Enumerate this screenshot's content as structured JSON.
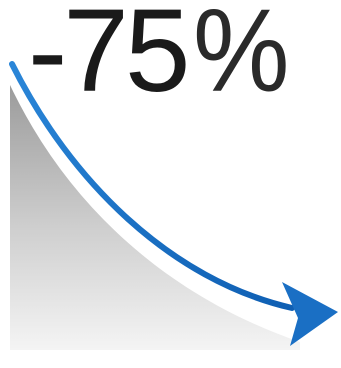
{
  "headline": {
    "value": "-75",
    "unit": "%"
  },
  "colors": {
    "text": "#1a1a1a",
    "arrow": "#1a6fc4",
    "area_top": "#9a9a9a",
    "area_bottom": "#f4f4f4"
  },
  "icons": {
    "trend": "downward-trend-arrow-icon",
    "area": "decline-area-shape"
  }
}
